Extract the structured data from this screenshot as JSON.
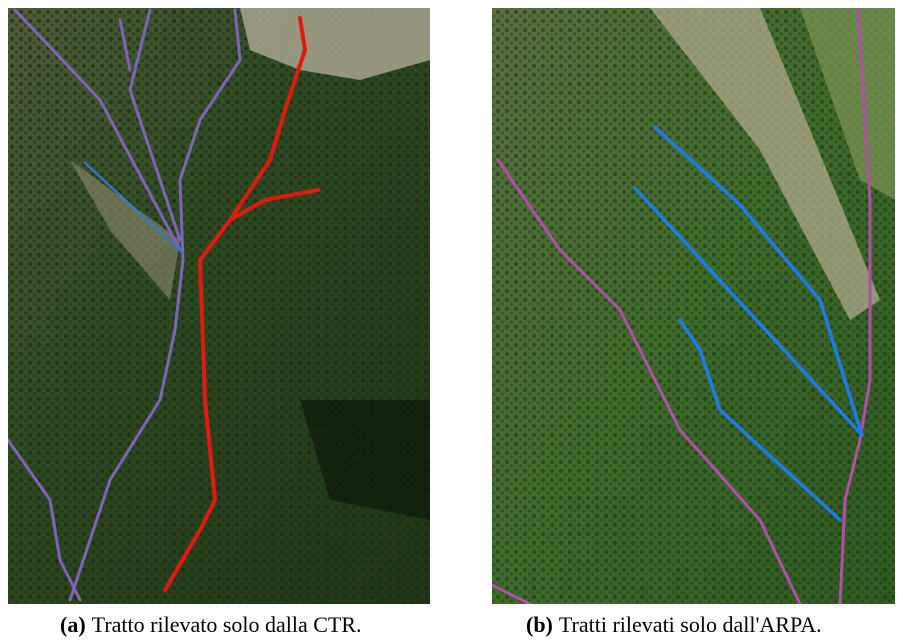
{
  "figures": [
    {
      "label": "(a)",
      "caption": "Tratto rilevato solo dalla CTR."
    },
    {
      "label": "(b)",
      "caption": "Tratti rilevati solo dall'ARPA."
    }
  ]
}
